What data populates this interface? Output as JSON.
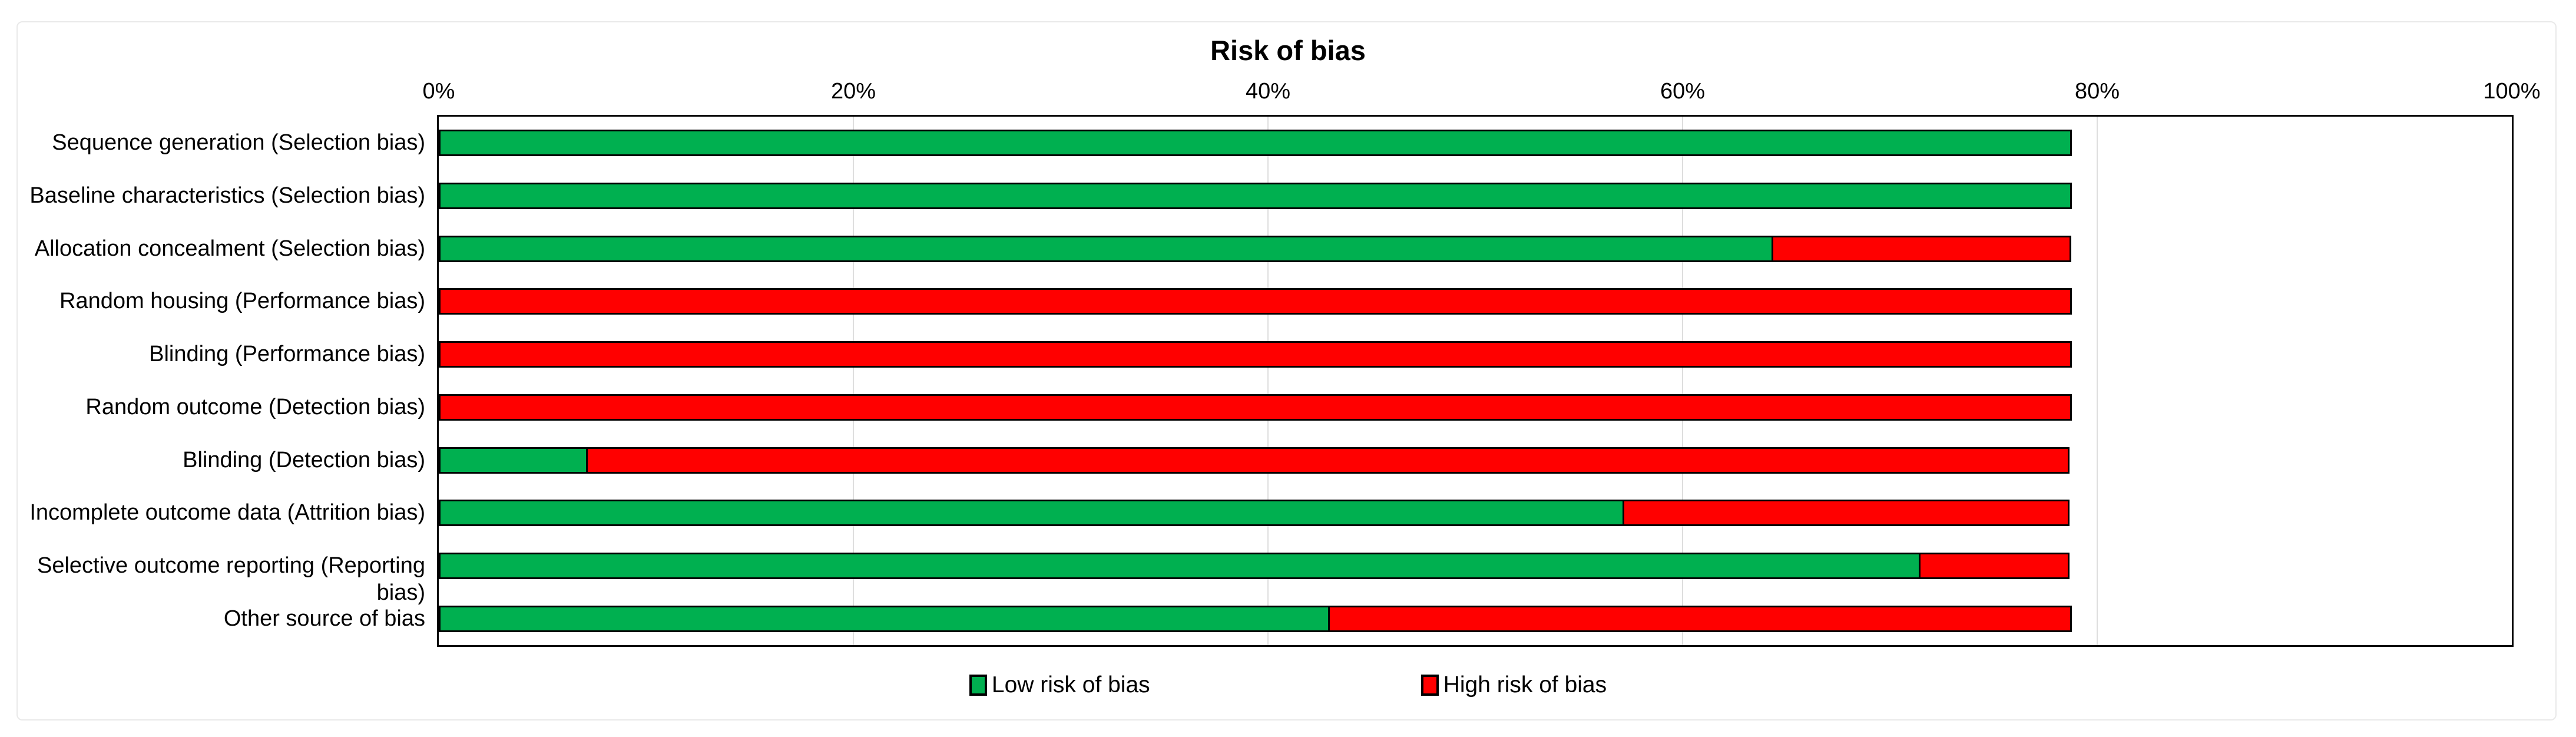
{
  "chart": {
    "title": "Risk of bias",
    "legend": {
      "low": "Low risk of bias",
      "high": "High risk of bias"
    },
    "colors": {
      "low": "#00B050",
      "high": "#FF0000",
      "gridline": "#dedede",
      "plot_border": "#000000",
      "figure_border": "#e9e9e9"
    }
  },
  "chart_data": {
    "type": "bar",
    "orientation": "horizontal",
    "stacked": true,
    "title": "Risk of bias",
    "xlabel": "",
    "ylabel": "",
    "xlim": [
      0,
      100
    ],
    "x_tick_labels": [
      "0%",
      "20%",
      "40%",
      "60%",
      "80%",
      "100%"
    ],
    "x_tick_values": [
      0,
      20,
      40,
      60,
      80,
      100
    ],
    "grid": "vertical",
    "legend_position": "bottom",
    "categories": [
      "Sequence generation (Selection bias)",
      "Baseline characteristics (Selection bias)",
      "Allocation concealment (Selection bias)",
      "Random housing (Performance bias)",
      "Blinding (Performance bias)",
      "Random outcome (Detection bias)",
      "Blinding (Detection bias)",
      "Incomplete outcome data (Attrition bias)",
      "Selective outcome reporting (Reporting bias)",
      "Other source of bias"
    ],
    "series": [
      {
        "name": "Low risk of bias",
        "color": "#00B050",
        "values": [
          78.6,
          78.6,
          64.3,
          0,
          0,
          0,
          7.1,
          57.1,
          71.4,
          42.9
        ]
      },
      {
        "name": "High risk of bias",
        "color": "#FF0000",
        "values": [
          0,
          0,
          14.3,
          78.6,
          78.6,
          78.6,
          71.4,
          21.4,
          7.1,
          35.7
        ]
      }
    ]
  }
}
